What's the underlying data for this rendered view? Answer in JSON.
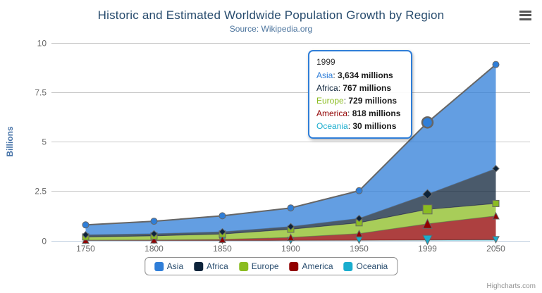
{
  "chart_data": {
    "type": "area",
    "stacking": "normal",
    "title": "Historic and Estimated Worldwide Population Growth by Region",
    "subtitle": "Source: Wikipedia.org",
    "categories": [
      "1750",
      "1800",
      "1850",
      "1900",
      "1950",
      "1999",
      "2050"
    ],
    "xlabel": "",
    "ylabel": "Billions",
    "ylim": [
      0,
      10
    ],
    "yticks": [
      0,
      2.5,
      5,
      7.5,
      10
    ],
    "grid": true,
    "legend_position": "bottom-center",
    "values_unit": "millions",
    "axis_unit": "billions",
    "stack_order_bottom_to_top": [
      "Oceania",
      "America",
      "Europe",
      "Africa",
      "Asia"
    ],
    "series": [
      {
        "name": "Asia",
        "color": "#2f7ed8",
        "marker": "circle",
        "values": [
          502,
          635,
          809,
          947,
          1402,
          3634,
          5268
        ]
      },
      {
        "name": "Africa",
        "color": "#0d233a",
        "marker": "diamond",
        "values": [
          106,
          107,
          111,
          133,
          221,
          767,
          1766
        ]
      },
      {
        "name": "Europe",
        "color": "#8bbc21",
        "marker": "square",
        "values": [
          163,
          203,
          276,
          408,
          547,
          729,
          628
        ]
      },
      {
        "name": "America",
        "color": "#910000",
        "marker": "triangle-up",
        "values": [
          18,
          31,
          54,
          156,
          339,
          818,
          1201
        ]
      },
      {
        "name": "Oceania",
        "color": "#1aadce",
        "marker": "triangle-down",
        "values": [
          2,
          2,
          2,
          6,
          13,
          30,
          46
        ]
      }
    ],
    "line_color": "#666666",
    "fill_opacity": 0.75,
    "hover_category": "1999"
  },
  "tooltip": {
    "header": "1999",
    "rows": [
      {
        "name": "Asia",
        "value": "3,634 millions"
      },
      {
        "name": "Africa",
        "value": "767 millions"
      },
      {
        "name": "Europe",
        "value": "729 millions"
      },
      {
        "name": "America",
        "value": "818 millions"
      },
      {
        "name": "Oceania",
        "value": "30 millions"
      }
    ]
  },
  "legend": {
    "items": [
      "Asia",
      "Africa",
      "Europe",
      "America",
      "Oceania"
    ]
  },
  "credits": {
    "label": "Highcharts.com"
  },
  "icons": {
    "menu": "hamburger-icon"
  },
  "colors": {
    "title": "#274b6d",
    "subtitle": "#4d759e",
    "axis_label": "#666666",
    "axis_title": "#4572a7",
    "grid": "#c8c8c8",
    "axis_line": "#c0d0e0",
    "legend_border": "#909090",
    "tooltip_border": "#2f7ed8"
  }
}
